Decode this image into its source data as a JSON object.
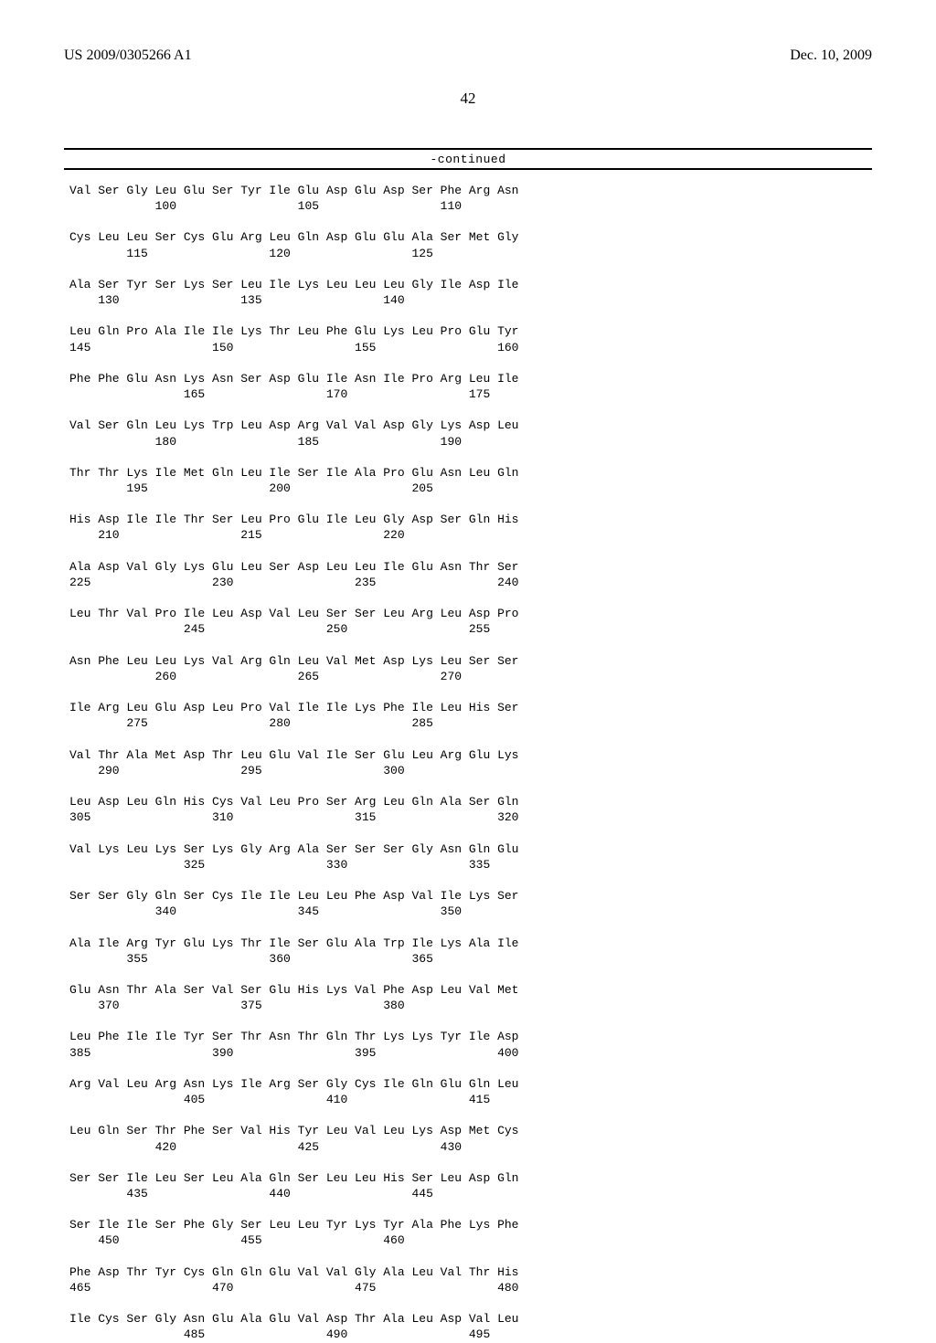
{
  "header": {
    "publication_number": "US 2009/0305266 A1",
    "publication_date": "Dec. 10, 2009"
  },
  "page_number": "42",
  "continued_label": "-continued",
  "sequence_text": "Val Ser Gly Leu Glu Ser Tyr Ile Glu Asp Glu Asp Ser Phe Arg Asn\n            100                 105                 110\n\nCys Leu Leu Ser Cys Glu Arg Leu Gln Asp Glu Glu Ala Ser Met Gly\n        115                 120                 125\n\nAla Ser Tyr Ser Lys Ser Leu Ile Lys Leu Leu Leu Gly Ile Asp Ile\n    130                 135                 140\n\nLeu Gln Pro Ala Ile Ile Lys Thr Leu Phe Glu Lys Leu Pro Glu Tyr\n145                 150                 155                 160\n\nPhe Phe Glu Asn Lys Asn Ser Asp Glu Ile Asn Ile Pro Arg Leu Ile\n                165                 170                 175\n\nVal Ser Gln Leu Lys Trp Leu Asp Arg Val Val Asp Gly Lys Asp Leu\n            180                 185                 190\n\nThr Thr Lys Ile Met Gln Leu Ile Ser Ile Ala Pro Glu Asn Leu Gln\n        195                 200                 205\n\nHis Asp Ile Ile Thr Ser Leu Pro Glu Ile Leu Gly Asp Ser Gln His\n    210                 215                 220\n\nAla Asp Val Gly Lys Glu Leu Ser Asp Leu Leu Ile Glu Asn Thr Ser\n225                 230                 235                 240\n\nLeu Thr Val Pro Ile Leu Asp Val Leu Ser Ser Leu Arg Leu Asp Pro\n                245                 250                 255\n\nAsn Phe Leu Leu Lys Val Arg Gln Leu Val Met Asp Lys Leu Ser Ser\n            260                 265                 270\n\nIle Arg Leu Glu Asp Leu Pro Val Ile Ile Lys Phe Ile Leu His Ser\n        275                 280                 285\n\nVal Thr Ala Met Asp Thr Leu Glu Val Ile Ser Glu Leu Arg Glu Lys\n    290                 295                 300\n\nLeu Asp Leu Gln His Cys Val Leu Pro Ser Arg Leu Gln Ala Ser Gln\n305                 310                 315                 320\n\nVal Lys Leu Lys Ser Lys Gly Arg Ala Ser Ser Ser Gly Asn Gln Glu\n                325                 330                 335\n\nSer Ser Gly Gln Ser Cys Ile Ile Leu Leu Phe Asp Val Ile Lys Ser\n            340                 345                 350\n\nAla Ile Arg Tyr Glu Lys Thr Ile Ser Glu Ala Trp Ile Lys Ala Ile\n        355                 360                 365\n\nGlu Asn Thr Ala Ser Val Ser Glu His Lys Val Phe Asp Leu Val Met\n    370                 375                 380\n\nLeu Phe Ile Ile Tyr Ser Thr Asn Thr Gln Thr Lys Lys Tyr Ile Asp\n385                 390                 395                 400\n\nArg Val Leu Arg Asn Lys Ile Arg Ser Gly Cys Ile Gln Glu Gln Leu\n                405                 410                 415\n\nLeu Gln Ser Thr Phe Ser Val His Tyr Leu Val Leu Lys Asp Met Cys\n            420                 425                 430\n\nSer Ser Ile Leu Ser Leu Ala Gln Ser Leu Leu His Ser Leu Asp Gln\n        435                 440                 445\n\nSer Ile Ile Ser Phe Gly Ser Leu Leu Tyr Lys Tyr Ala Phe Lys Phe\n    450                 455                 460\n\nPhe Asp Thr Tyr Cys Gln Gln Glu Val Val Gly Ala Leu Val Thr His\n465                 470                 475                 480\n\nIle Cys Ser Gly Asn Glu Ala Glu Val Asp Thr Ala Leu Asp Val Leu\n                485                 490                 495"
}
